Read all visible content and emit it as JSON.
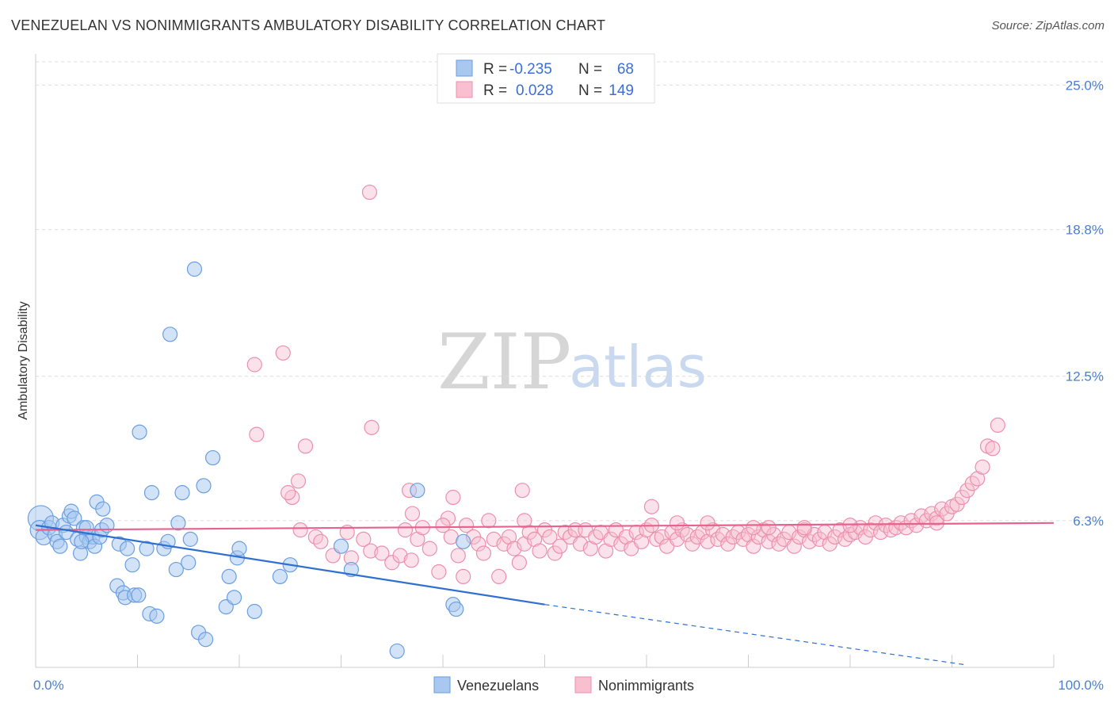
{
  "header": {
    "title": "VENEZUELAN VS NONIMMIGRANTS AMBULATORY DISABILITY CORRELATION CHART",
    "source": "Source: ZipAtlas.com"
  },
  "watermark": {
    "zip": "ZIP",
    "atlas": "atlas"
  },
  "legend": {
    "rows": [
      {
        "r_label": "R =",
        "r_value": "-0.235",
        "n_label": "N =",
        "n_value": "68"
      },
      {
        "r_label": "R =",
        "r_value": "0.028",
        "n_label": "N =",
        "n_value": "149"
      }
    ]
  },
  "bottom_legend": {
    "venezuelans": "Venezuelans",
    "nonimmigrants": "Nonimmigrants"
  },
  "colors": {
    "venezuelans_fill": "#a8c8f0",
    "venezuelans_stroke": "#6a9ee0",
    "venezuelans_line": "#2f6fd0",
    "nonimmigrants_fill": "#f7bfd0",
    "nonimmigrants_stroke": "#ec8fad",
    "nonimmigrants_line": "#e8628e",
    "tick_label": "#4a7fd0"
  },
  "chart_data": {
    "type": "scatter",
    "title": "VENEZUELAN VS NONIMMIGRANTS AMBULATORY DISABILITY CORRELATION CHART",
    "xlabel": "",
    "ylabel": "Ambulatory Disability",
    "xlim": [
      0,
      100
    ],
    "ylim": [
      0,
      26
    ],
    "x_tick_labels": [
      "0.0%",
      "100.0%"
    ],
    "y_ticks": [
      6.3,
      12.5,
      18.8,
      25.0
    ],
    "y_tick_labels": [
      "6.3%",
      "12.5%",
      "18.8%",
      "25.0%"
    ],
    "grid": true,
    "legend_position": "top-center",
    "series": [
      {
        "name": "Venezuelans",
        "R": -0.235,
        "N": 68,
        "trend": {
          "x": [
            0,
            50
          ],
          "y": [
            6.1,
            2.7
          ],
          "dashed_to": [
            91.5,
            0.1
          ]
        },
        "points": [
          [
            0.5,
            6.4,
            16
          ],
          [
            0.4,
            5.9,
            12
          ],
          [
            0.8,
            5.6,
            10
          ],
          [
            1.3,
            6.0,
            9
          ],
          [
            1.6,
            6.2,
            9
          ],
          [
            1.9,
            5.7,
            9
          ],
          [
            2.1,
            5.4,
            9
          ],
          [
            2.4,
            5.2,
            9
          ],
          [
            2.7,
            6.1,
            9
          ],
          [
            3.0,
            5.8,
            9
          ],
          [
            3.3,
            6.5,
            9
          ],
          [
            3.5,
            6.7,
            9
          ],
          [
            3.8,
            6.4,
            9
          ],
          [
            4.1,
            5.5,
            9
          ],
          [
            4.4,
            4.9,
            9
          ],
          [
            4.7,
            6.0,
            9
          ],
          [
            5.0,
            5.6,
            9
          ],
          [
            5.3,
            5.4,
            9
          ],
          [
            5.6,
            5.6,
            9
          ],
          [
            5.8,
            5.2,
            9
          ],
          [
            6.0,
            7.1,
            9
          ],
          [
            6.3,
            5.6,
            9
          ],
          [
            6.5,
            5.9,
            9
          ],
          [
            6.6,
            6.8,
            9
          ],
          [
            7.0,
            6.1,
            9
          ],
          [
            5.0,
            6.0,
            9
          ],
          [
            4.5,
            5.4,
            9
          ],
          [
            8.0,
            3.5,
            9
          ],
          [
            8.2,
            5.3,
            9
          ],
          [
            8.6,
            3.2,
            9
          ],
          [
            8.8,
            3.0,
            9
          ],
          [
            9.0,
            5.1,
            9
          ],
          [
            9.5,
            4.4,
            9
          ],
          [
            9.7,
            3.1,
            9
          ],
          [
            10.1,
            3.1,
            9
          ],
          [
            10.2,
            10.1,
            9
          ],
          [
            10.9,
            5.1,
            9
          ],
          [
            11.2,
            2.3,
            9
          ],
          [
            11.4,
            7.5,
            9
          ],
          [
            11.9,
            2.2,
            9
          ],
          [
            12.6,
            5.1,
            9
          ],
          [
            13.0,
            5.4,
            9
          ],
          [
            13.2,
            14.3,
            9
          ],
          [
            13.8,
            4.2,
            9
          ],
          [
            14.0,
            6.2,
            9
          ],
          [
            14.4,
            7.5,
            9
          ],
          [
            15.0,
            4.5,
            9
          ],
          [
            15.2,
            5.5,
            9
          ],
          [
            15.6,
            17.1,
            9
          ],
          [
            16.0,
            1.5,
            9
          ],
          [
            16.5,
            7.8,
            9
          ],
          [
            16.7,
            1.2,
            9
          ],
          [
            17.4,
            9.0,
            9
          ],
          [
            18.7,
            2.6,
            9
          ],
          [
            19.0,
            3.9,
            9
          ],
          [
            19.5,
            3.0,
            9
          ],
          [
            19.8,
            4.7,
            9
          ],
          [
            20.0,
            5.1,
            9
          ],
          [
            21.5,
            2.4,
            9
          ],
          [
            24.0,
            3.9,
            9
          ],
          [
            25.0,
            4.4,
            9
          ],
          [
            30.0,
            5.2,
            9
          ],
          [
            31.0,
            4.2,
            9
          ],
          [
            35.5,
            0.7,
            9
          ],
          [
            37.5,
            7.6,
            9
          ],
          [
            41.0,
            2.7,
            9
          ],
          [
            41.3,
            2.5,
            9
          ],
          [
            42.0,
            5.4,
            9
          ]
        ]
      },
      {
        "name": "Nonimmigrants",
        "R": 0.028,
        "N": 149,
        "trend": {
          "x": [
            0,
            100
          ],
          "y": [
            5.9,
            6.2
          ]
        },
        "points": [
          [
            32.8,
            20.4
          ],
          [
            21.5,
            13.0
          ],
          [
            24.3,
            13.5
          ],
          [
            21.7,
            10.0
          ],
          [
            33.0,
            10.3
          ],
          [
            26.5,
            9.5
          ],
          [
            25.8,
            8.0
          ],
          [
            25.2,
            7.3
          ],
          [
            24.8,
            7.5
          ],
          [
            36.7,
            7.6
          ],
          [
            41.0,
            7.3
          ],
          [
            47.8,
            7.6
          ],
          [
            40.5,
            6.4
          ],
          [
            26.0,
            5.9
          ],
          [
            27.5,
            5.6
          ],
          [
            28.0,
            5.4
          ],
          [
            29.2,
            4.8
          ],
          [
            30.6,
            5.8
          ],
          [
            31.0,
            4.7
          ],
          [
            32.2,
            5.5
          ],
          [
            32.9,
            5.0
          ],
          [
            34.0,
            4.9
          ],
          [
            35.0,
            4.5
          ],
          [
            35.8,
            4.8
          ],
          [
            36.3,
            5.9
          ],
          [
            36.9,
            4.6
          ],
          [
            37.5,
            5.5
          ],
          [
            38.0,
            6.0
          ],
          [
            38.7,
            5.1
          ],
          [
            39.6,
            4.1
          ],
          [
            40.0,
            6.1
          ],
          [
            40.8,
            5.6
          ],
          [
            41.5,
            4.8
          ],
          [
            42.0,
            3.9
          ],
          [
            42.3,
            6.1
          ],
          [
            43.0,
            5.6
          ],
          [
            43.5,
            5.3
          ],
          [
            44.0,
            4.9
          ],
          [
            44.5,
            6.3
          ],
          [
            45.0,
            5.5
          ],
          [
            45.5,
            3.9
          ],
          [
            46.0,
            5.3
          ],
          [
            46.5,
            5.6
          ],
          [
            47.0,
            5.1
          ],
          [
            47.5,
            4.5
          ],
          [
            48.0,
            5.3
          ],
          [
            48.5,
            5.8
          ],
          [
            49.0,
            5.5
          ],
          [
            49.5,
            5.0
          ],
          [
            50.0,
            5.9
          ],
          [
            50.5,
            5.6
          ],
          [
            51.0,
            4.9
          ],
          [
            51.5,
            5.2
          ],
          [
            52.0,
            5.8
          ],
          [
            52.5,
            5.6
          ],
          [
            53.0,
            5.9
          ],
          [
            53.5,
            5.3
          ],
          [
            54.0,
            5.9
          ],
          [
            54.5,
            5.1
          ],
          [
            55.0,
            5.6
          ],
          [
            55.5,
            5.8
          ],
          [
            56.0,
            5.0
          ],
          [
            56.5,
            5.5
          ],
          [
            57.0,
            5.9
          ],
          [
            57.5,
            5.3
          ],
          [
            58.0,
            5.6
          ],
          [
            58.5,
            5.1
          ],
          [
            59.0,
            5.8
          ],
          [
            59.5,
            5.4
          ],
          [
            60.0,
            5.9
          ],
          [
            60.5,
            6.1
          ],
          [
            61.0,
            5.5
          ],
          [
            61.5,
            5.6
          ],
          [
            62.0,
            5.2
          ],
          [
            62.5,
            5.8
          ],
          [
            63.0,
            5.5
          ],
          [
            63.5,
            5.9
          ],
          [
            64.0,
            5.7
          ],
          [
            64.5,
            5.3
          ],
          [
            65.0,
            5.6
          ],
          [
            65.5,
            5.8
          ],
          [
            66.0,
            5.4
          ],
          [
            66.5,
            5.9
          ],
          [
            67.0,
            5.5
          ],
          [
            67.5,
            5.7
          ],
          [
            68.0,
            5.3
          ],
          [
            68.5,
            5.6
          ],
          [
            69.0,
            5.8
          ],
          [
            69.5,
            5.5
          ],
          [
            70.0,
            5.7
          ],
          [
            70.5,
            5.2
          ],
          [
            71.0,
            5.6
          ],
          [
            71.5,
            5.9
          ],
          [
            72.0,
            5.4
          ],
          [
            72.5,
            5.7
          ],
          [
            73.0,
            5.3
          ],
          [
            73.5,
            5.5
          ],
          [
            74.0,
            5.8
          ],
          [
            74.5,
            5.2
          ],
          [
            75.0,
            5.6
          ],
          [
            75.5,
            5.9
          ],
          [
            76.0,
            5.4
          ],
          [
            76.5,
            5.7
          ],
          [
            77.0,
            5.5
          ],
          [
            77.5,
            5.8
          ],
          [
            78.0,
            5.3
          ],
          [
            78.5,
            5.6
          ],
          [
            79.0,
            5.9
          ],
          [
            79.5,
            5.5
          ],
          [
            80.0,
            5.7
          ],
          [
            80.5,
            5.8
          ],
          [
            81.0,
            6.0
          ],
          [
            81.5,
            5.6
          ],
          [
            82.0,
            5.9
          ],
          [
            82.5,
            6.2
          ],
          [
            83.0,
            5.8
          ],
          [
            83.5,
            6.1
          ],
          [
            84.0,
            5.9
          ],
          [
            84.5,
            6.0
          ],
          [
            85.0,
            6.2
          ],
          [
            85.5,
            6.0
          ],
          [
            86.0,
            6.3
          ],
          [
            86.5,
            6.1
          ],
          [
            87.0,
            6.5
          ],
          [
            87.5,
            6.3
          ],
          [
            88.0,
            6.6
          ],
          [
            88.5,
            6.4
          ],
          [
            89.0,
            6.8
          ],
          [
            89.5,
            6.6
          ],
          [
            90.0,
            6.9
          ],
          [
            90.5,
            7.0
          ],
          [
            91.0,
            7.3
          ],
          [
            91.5,
            7.6
          ],
          [
            92.0,
            7.9
          ],
          [
            92.5,
            8.1
          ],
          [
            93.0,
            8.6
          ],
          [
            93.5,
            9.5
          ],
          [
            94.0,
            9.4
          ],
          [
            94.5,
            10.4
          ],
          [
            88.5,
            6.2
          ],
          [
            66.0,
            6.2
          ],
          [
            63.0,
            6.2
          ],
          [
            70.5,
            6.0
          ],
          [
            75.5,
            6.0
          ],
          [
            80.0,
            6.1
          ],
          [
            60.5,
            6.9
          ],
          [
            48.0,
            6.3
          ],
          [
            72.0,
            6.0
          ],
          [
            37.0,
            6.6
          ]
        ]
      }
    ]
  }
}
